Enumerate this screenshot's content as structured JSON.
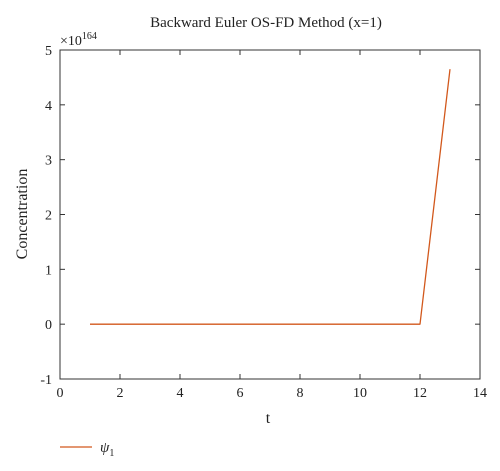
{
  "chart_data": {
    "type": "line",
    "title": "Backward Euler OS-FD Method (x=1)",
    "xlabel": "t",
    "ylabel": "Concentration",
    "y_multiplier_base": "×10",
    "y_multiplier_exponent": "164",
    "xlim": [
      0,
      14
    ],
    "ylim": [
      -1,
      5
    ],
    "x_ticks": [
      0,
      2,
      4,
      6,
      8,
      10,
      12,
      14
    ],
    "y_ticks": [
      -1,
      0,
      1,
      2,
      3,
      4,
      5
    ],
    "grid": false,
    "legend_position": "bottom-left",
    "series": [
      {
        "name": "ψ1",
        "name_base": "ψ",
        "name_sub": "1",
        "color": "#d2581c",
        "x": [
          1,
          12,
          13
        ],
        "y": [
          0,
          0,
          4.65
        ]
      }
    ]
  }
}
